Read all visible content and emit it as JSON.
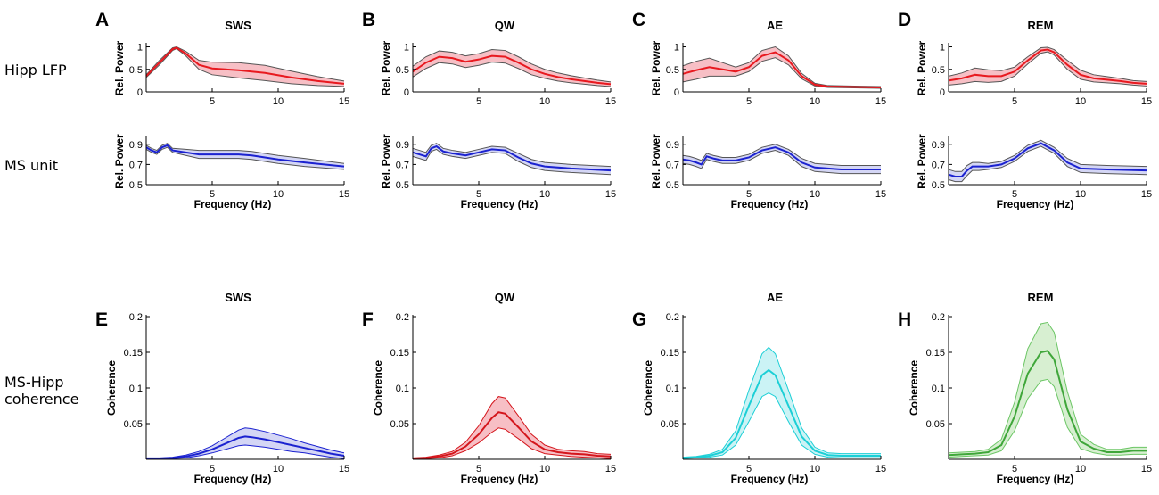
{
  "row_labels": [
    "Hipp LFP",
    "MS unit",
    "MS-Hipp",
    "coherence"
  ],
  "chart_data": [
    {
      "id": "A-lfp",
      "letter": "A",
      "title": "SWS",
      "type": "area",
      "kind": "power",
      "color": "#e8191f",
      "band_color": "#f4a9b1",
      "edge_color": "#555555",
      "ylabel": "Rel. Power",
      "xlabel": "",
      "xlim": [
        0,
        15
      ],
      "ylim": [
        0,
        1.05
      ],
      "xticks": [
        5,
        10,
        15
      ],
      "yticks": [
        0,
        0.5,
        1
      ],
      "ytick_labels": [
        "0",
        "0.5",
        "1"
      ],
      "x": [
        0,
        1,
        2,
        2.3,
        3,
        4,
        5,
        7,
        9,
        11,
        13,
        15
      ],
      "y": [
        0.35,
        0.65,
        0.95,
        0.98,
        0.85,
        0.6,
        0.52,
        0.48,
        0.42,
        0.32,
        0.24,
        0.18
      ],
      "band_width": [
        0.03,
        0.05,
        0.03,
        0.02,
        0.05,
        0.1,
        0.14,
        0.17,
        0.17,
        0.14,
        0.1,
        0.06
      ]
    },
    {
      "id": "B-lfp",
      "letter": "B",
      "title": "QW",
      "type": "area",
      "kind": "power",
      "color": "#e8191f",
      "band_color": "#f4a9b1",
      "edge_color": "#555555",
      "ylabel": "Rel. Power",
      "xlabel": "",
      "xlim": [
        0,
        15
      ],
      "ylim": [
        0,
        1.05
      ],
      "xticks": [
        5,
        10,
        15
      ],
      "yticks": [
        0,
        0.5,
        1
      ],
      "ytick_labels": [
        "0",
        "0.5",
        "1"
      ],
      "x": [
        0,
        1,
        2,
        3,
        4,
        5,
        6,
        7,
        8,
        9,
        10,
        11,
        12,
        13,
        14,
        15
      ],
      "y": [
        0.45,
        0.65,
        0.78,
        0.75,
        0.67,
        0.72,
        0.8,
        0.78,
        0.65,
        0.5,
        0.4,
        0.33,
        0.28,
        0.24,
        0.2,
        0.17
      ],
      "band_width": [
        0.12,
        0.13,
        0.13,
        0.13,
        0.13,
        0.13,
        0.14,
        0.14,
        0.13,
        0.12,
        0.1,
        0.09,
        0.08,
        0.07,
        0.06,
        0.05
      ]
    },
    {
      "id": "C-lfp",
      "letter": "C",
      "title": "AE",
      "type": "area",
      "kind": "power",
      "color": "#e8191f",
      "band_color": "#f4a9b1",
      "edge_color": "#555555",
      "ylabel": "Rel. Power",
      "xlabel": "",
      "xlim": [
        0,
        15
      ],
      "ylim": [
        0,
        1.05
      ],
      "xticks": [
        5,
        10,
        15
      ],
      "yticks": [
        0,
        0.5,
        1
      ],
      "ytick_labels": [
        "0",
        "0.5",
        "1"
      ],
      "x": [
        0,
        1,
        2,
        3,
        4,
        5,
        6,
        7,
        8,
        9,
        10,
        11,
        13,
        15
      ],
      "y": [
        0.4,
        0.48,
        0.55,
        0.5,
        0.45,
        0.55,
        0.8,
        0.88,
        0.7,
        0.35,
        0.16,
        0.12,
        0.11,
        0.1
      ],
      "band_width": [
        0.18,
        0.2,
        0.2,
        0.15,
        0.1,
        0.1,
        0.12,
        0.12,
        0.1,
        0.06,
        0.03,
        0.02,
        0.02,
        0.02
      ]
    },
    {
      "id": "D-lfp",
      "letter": "D",
      "title": "REM",
      "type": "area",
      "kind": "power",
      "color": "#e8191f",
      "band_color": "#f4a9b1",
      "edge_color": "#555555",
      "ylabel": "Rel. Power",
      "xlabel": "",
      "xlim": [
        0,
        15
      ],
      "ylim": [
        0,
        1.05
      ],
      "xticks": [
        5,
        10,
        15
      ],
      "yticks": [
        0,
        0.5,
        1
      ],
      "ytick_labels": [
        "0",
        "0.5",
        "1"
      ],
      "x": [
        0,
        1,
        2,
        3,
        4,
        5,
        6,
        7,
        7.5,
        8,
        9,
        10,
        11,
        12,
        13,
        14,
        15
      ],
      "y": [
        0.25,
        0.3,
        0.38,
        0.35,
        0.35,
        0.45,
        0.7,
        0.92,
        0.94,
        0.88,
        0.6,
        0.38,
        0.3,
        0.27,
        0.24,
        0.2,
        0.18
      ],
      "band_width": [
        0.1,
        0.12,
        0.15,
        0.14,
        0.12,
        0.1,
        0.08,
        0.06,
        0.05,
        0.06,
        0.1,
        0.1,
        0.08,
        0.07,
        0.06,
        0.05,
        0.05
      ]
    },
    {
      "id": "A-ms",
      "letter": "",
      "title": "",
      "type": "area",
      "kind": "power",
      "color": "#1b22d0",
      "band_color": "#c6c8f2",
      "edge_color": "#555555",
      "ylabel": "Rel. Power",
      "xlabel": "Frequency (Hz)",
      "xlim": [
        0,
        15
      ],
      "ylim": [
        0.5,
        0.96
      ],
      "xticks": [
        5,
        10,
        15
      ],
      "yticks": [
        0.5,
        0.7,
        0.9
      ],
      "ytick_labels": [
        "0.5",
        "0.7",
        "0.9"
      ],
      "x": [
        0,
        0.4,
        0.8,
        1.2,
        1.6,
        2,
        3,
        4,
        5,
        6,
        7,
        8,
        9,
        10,
        12,
        15
      ],
      "y": [
        0.87,
        0.84,
        0.82,
        0.87,
        0.89,
        0.84,
        0.82,
        0.8,
        0.8,
        0.8,
        0.8,
        0.79,
        0.77,
        0.75,
        0.72,
        0.68
      ],
      "band_width": [
        0.02,
        0.02,
        0.02,
        0.02,
        0.02,
        0.02,
        0.03,
        0.04,
        0.04,
        0.04,
        0.04,
        0.04,
        0.04,
        0.04,
        0.04,
        0.03
      ]
    },
    {
      "id": "B-ms",
      "letter": "",
      "title": "",
      "type": "area",
      "kind": "power",
      "color": "#1b22d0",
      "band_color": "#c6c8f2",
      "edge_color": "#555555",
      "ylabel": "Rel. Power",
      "xlabel": "Frequency (Hz)",
      "xlim": [
        0,
        15
      ],
      "ylim": [
        0.5,
        0.96
      ],
      "xticks": [
        5,
        10,
        15
      ],
      "yticks": [
        0.5,
        0.7,
        0.9
      ],
      "ytick_labels": [
        "0.5",
        "0.7",
        "0.9"
      ],
      "x": [
        0,
        0.5,
        1,
        1.4,
        1.8,
        2.3,
        3,
        4,
        5,
        6,
        7,
        8,
        9,
        10,
        12,
        15
      ],
      "y": [
        0.82,
        0.8,
        0.78,
        0.86,
        0.88,
        0.83,
        0.81,
        0.79,
        0.82,
        0.85,
        0.84,
        0.77,
        0.71,
        0.68,
        0.66,
        0.64
      ],
      "band_width": [
        0.04,
        0.04,
        0.04,
        0.03,
        0.03,
        0.03,
        0.03,
        0.03,
        0.03,
        0.03,
        0.03,
        0.04,
        0.04,
        0.04,
        0.04,
        0.04
      ]
    },
    {
      "id": "C-ms",
      "letter": "",
      "title": "",
      "type": "area",
      "kind": "power",
      "color": "#1b22d0",
      "band_color": "#c6c8f2",
      "edge_color": "#555555",
      "ylabel": "Rel. Power",
      "xlabel": "Frequency (Hz)",
      "xlim": [
        0,
        15
      ],
      "ylim": [
        0.5,
        0.96
      ],
      "xticks": [
        5,
        10,
        15
      ],
      "yticks": [
        0.5,
        0.7,
        0.9
      ],
      "ytick_labels": [
        "0.5",
        "0.7",
        "0.9"
      ],
      "x": [
        0,
        0.5,
        1,
        1.4,
        1.8,
        2.3,
        3,
        4,
        5,
        6,
        7,
        8,
        9,
        10,
        12,
        15
      ],
      "y": [
        0.75,
        0.74,
        0.72,
        0.7,
        0.78,
        0.76,
        0.74,
        0.74,
        0.77,
        0.84,
        0.87,
        0.82,
        0.72,
        0.67,
        0.65,
        0.65
      ],
      "band_width": [
        0.04,
        0.04,
        0.04,
        0.04,
        0.03,
        0.03,
        0.03,
        0.03,
        0.03,
        0.03,
        0.03,
        0.03,
        0.04,
        0.04,
        0.04,
        0.04
      ]
    },
    {
      "id": "D-ms",
      "letter": "",
      "title": "",
      "type": "area",
      "kind": "power",
      "color": "#1b22d0",
      "band_color": "#c6c8f2",
      "edge_color": "#555555",
      "ylabel": "Rel. Power",
      "xlabel": "Frequency (Hz)",
      "xlim": [
        0,
        15
      ],
      "ylim": [
        0.5,
        0.96
      ],
      "xticks": [
        5,
        10,
        15
      ],
      "yticks": [
        0.5,
        0.7,
        0.9
      ],
      "ytick_labels": [
        "0.5",
        "0.7",
        "0.9"
      ],
      "x": [
        0,
        0.5,
        1,
        1.4,
        1.8,
        2.3,
        3,
        4,
        5,
        6,
        7,
        8,
        9,
        10,
        12,
        15
      ],
      "y": [
        0.6,
        0.58,
        0.58,
        0.64,
        0.68,
        0.68,
        0.68,
        0.7,
        0.76,
        0.86,
        0.91,
        0.84,
        0.72,
        0.66,
        0.65,
        0.64
      ],
      "band_width": [
        0.05,
        0.05,
        0.05,
        0.05,
        0.04,
        0.04,
        0.03,
        0.03,
        0.03,
        0.03,
        0.03,
        0.03,
        0.04,
        0.04,
        0.04,
        0.04
      ]
    },
    {
      "id": "E-coh",
      "letter": "E",
      "title": "SWS",
      "type": "area",
      "kind": "coherence",
      "color": "#1b22d0",
      "band_color": "#c6c8f2",
      "edge_color": "#1b22d0",
      "ylabel": "Coherence",
      "xlabel": "Frequency (Hz)",
      "xlim": [
        0,
        15
      ],
      "ylim": [
        0,
        0.2
      ],
      "xticks": [
        5,
        10,
        15
      ],
      "yticks": [
        0.05,
        0.1,
        0.15,
        0.2
      ],
      "ytick_labels": [
        "0.05",
        "0.1",
        "0.15",
        "0.2"
      ],
      "x": [
        0,
        1,
        2,
        3,
        4,
        5,
        6,
        7,
        7.5,
        8,
        9,
        10,
        11,
        12,
        13,
        14,
        15
      ],
      "y": [
        0.001,
        0.001,
        0.002,
        0.004,
        0.008,
        0.014,
        0.022,
        0.03,
        0.032,
        0.031,
        0.028,
        0.024,
        0.02,
        0.016,
        0.012,
        0.008,
        0.005
      ],
      "band_width": [
        0.001,
        0.001,
        0.001,
        0.002,
        0.003,
        0.005,
        0.008,
        0.011,
        0.012,
        0.012,
        0.011,
        0.01,
        0.009,
        0.007,
        0.006,
        0.005,
        0.004
      ]
    },
    {
      "id": "F-coh",
      "letter": "F",
      "title": "QW",
      "type": "area",
      "kind": "coherence",
      "color": "#d4161c",
      "band_color": "#f4a9b1",
      "edge_color": "#d4161c",
      "ylabel": "Coherence",
      "xlabel": "Frequency (Hz)",
      "xlim": [
        0,
        15
      ],
      "ylim": [
        0,
        0.2
      ],
      "xticks": [
        5,
        10,
        15
      ],
      "yticks": [
        0.05,
        0.1,
        0.15,
        0.2
      ],
      "ytick_labels": [
        "0.05",
        "0.1",
        "0.15",
        "0.2"
      ],
      "x": [
        0,
        1,
        2,
        3,
        4,
        5,
        6,
        6.5,
        7,
        8,
        9,
        10,
        11,
        12,
        13,
        14,
        15
      ],
      "y": [
        0.001,
        0.002,
        0.004,
        0.008,
        0.018,
        0.035,
        0.058,
        0.066,
        0.064,
        0.045,
        0.025,
        0.014,
        0.01,
        0.008,
        0.007,
        0.005,
        0.004
      ],
      "band_width": [
        0.001,
        0.001,
        0.002,
        0.003,
        0.006,
        0.012,
        0.02,
        0.022,
        0.022,
        0.016,
        0.01,
        0.006,
        0.004,
        0.004,
        0.004,
        0.003,
        0.003
      ]
    },
    {
      "id": "G-coh",
      "letter": "G",
      "title": "AE",
      "type": "area",
      "kind": "coherence",
      "color": "#1ccfd6",
      "band_color": "#b9eff1",
      "edge_color": "#1ccfd6",
      "ylabel": "Coherence",
      "xlabel": "Frequency (Hz)",
      "xlim": [
        0,
        15
      ],
      "ylim": [
        0,
        0.2
      ],
      "xticks": [
        5,
        10,
        15
      ],
      "yticks": [
        0.05,
        0.1,
        0.15,
        0.2
      ],
      "ytick_labels": [
        "0.05",
        "0.1",
        "0.15",
        "0.2"
      ],
      "x": [
        0,
        1,
        2,
        3,
        4,
        5,
        6,
        6.5,
        7,
        8,
        9,
        10,
        11,
        12,
        13,
        15
      ],
      "y": [
        0.002,
        0.003,
        0.005,
        0.01,
        0.03,
        0.075,
        0.118,
        0.125,
        0.118,
        0.075,
        0.032,
        0.012,
        0.006,
        0.005,
        0.005,
        0.005
      ],
      "band_width": [
        0.001,
        0.001,
        0.002,
        0.004,
        0.01,
        0.022,
        0.03,
        0.032,
        0.03,
        0.022,
        0.012,
        0.005,
        0.003,
        0.003,
        0.003,
        0.003
      ]
    },
    {
      "id": "H-coh",
      "letter": "H",
      "title": "REM",
      "type": "area",
      "kind": "coherence",
      "color": "#3fa63a",
      "band_color": "#c9eac2",
      "edge_color": "#6cc665",
      "ylabel": "Coherence",
      "xlabel": "Frequency (Hz)",
      "xlim": [
        0,
        15
      ],
      "ylim": [
        0,
        0.2
      ],
      "xticks": [
        5,
        10,
        15
      ],
      "yticks": [
        0.05,
        0.1,
        0.15,
        0.2
      ],
      "ytick_labels": [
        "0.05",
        "0.1",
        "0.15",
        "0.2"
      ],
      "x": [
        0,
        1,
        2,
        3,
        4,
        5,
        6,
        7,
        7.5,
        8,
        9,
        10,
        11,
        12,
        13,
        14,
        15
      ],
      "y": [
        0.006,
        0.007,
        0.008,
        0.01,
        0.02,
        0.06,
        0.12,
        0.15,
        0.152,
        0.14,
        0.07,
        0.025,
        0.015,
        0.01,
        0.01,
        0.012,
        0.012
      ],
      "band_width": [
        0.003,
        0.003,
        0.003,
        0.004,
        0.008,
        0.02,
        0.035,
        0.04,
        0.04,
        0.038,
        0.025,
        0.01,
        0.006,
        0.004,
        0.004,
        0.005,
        0.005
      ]
    }
  ]
}
